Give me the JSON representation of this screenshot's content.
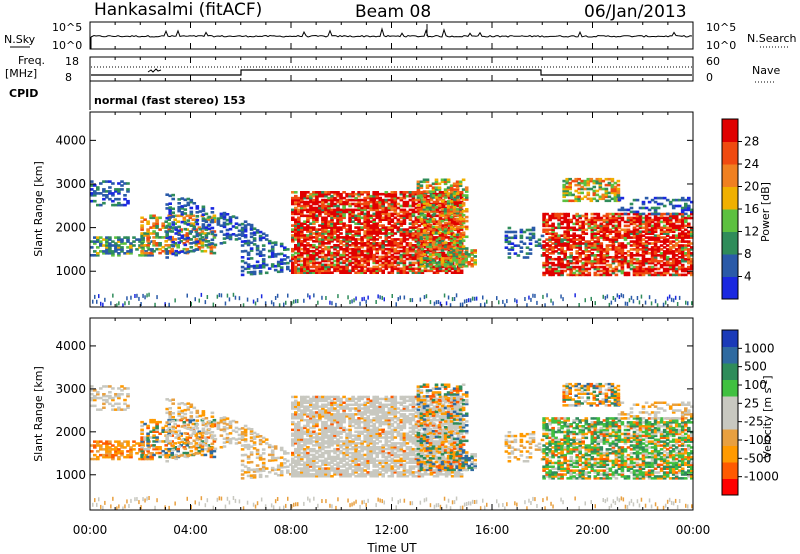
{
  "header": {
    "station": "Hankasalmi (fitACF)",
    "beam": "Beam 08",
    "date": "06/Jan/2013"
  },
  "colors": {
    "power_scale": [
      "#1a28e0",
      "#2a5aa8",
      "#2f8c5a",
      "#5cc040",
      "#f0b000",
      "#f08020",
      "#f04a10",
      "#e00000"
    ],
    "velocity_scale": [
      "#ff0000",
      "#ff5a00",
      "#ff9a00",
      "#e8a040",
      "#c8c8c0",
      "#c8c8c0",
      "#40c040",
      "#2f8c5a",
      "#2f6aa0",
      "#1a3ab8"
    ]
  },
  "chart_data": [
    {
      "type": "line",
      "name_label": "N.Sky",
      "right_label": "N.Search",
      "left_ticks": [
        "10^5",
        "10^0"
      ],
      "right_ticks": [
        "10^5",
        "10^0"
      ]
    },
    {
      "type": "line",
      "freq_label": "Freq.",
      "freq_unit": "[MHz]",
      "left_ticks": [
        "18",
        "8"
      ],
      "right_label": "Nave",
      "right_ticks": [
        "60",
        "0"
      ],
      "cpid_label": "CPID",
      "mode_text": "normal (fast stereo) 153",
      "nave_step_hours": [
        6.0,
        18.0
      ]
    },
    {
      "type": "heatmap",
      "ylabel": "Slant Range [km]",
      "yticks": [
        1000,
        2000,
        3000,
        4000
      ],
      "ylim": [
        180,
        4650
      ],
      "x_range_hours": [
        0,
        24
      ],
      "colorbar_label": "Power [dB]",
      "colorbar_ticks": [
        "4",
        "8",
        "12",
        "16",
        "20",
        "24",
        "28"
      ]
    },
    {
      "type": "heatmap",
      "ylabel": "Slant Range [km]",
      "yticks": [
        1000,
        2000,
        3000,
        4000
      ],
      "ylim": [
        180,
        4650
      ],
      "x_range_hours": [
        0,
        24
      ],
      "colorbar_label": "Velocity [m s^-1]",
      "colorbar_ticks": [
        "1000",
        "500",
        "100",
        "25",
        "-25",
        "-100",
        "-500",
        "-1000"
      ]
    }
  ],
  "x_axis": {
    "ticks": [
      "00:00",
      "04:00",
      "08:00",
      "12:00",
      "16:00",
      "20:00",
      "00:00"
    ],
    "xlabel": "Time UT"
  }
}
